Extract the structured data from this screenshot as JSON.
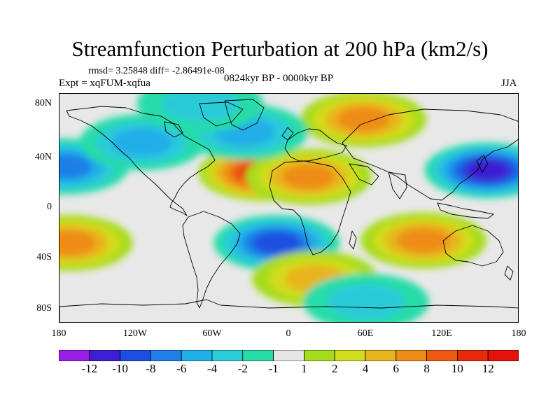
{
  "title": "Streamfunction Perturbation at 200 hPa (km2/s)",
  "stats": "rmsd= 3.25848  diff= -2.86491e-08",
  "expt": "Expt = xqFUM-xqfua",
  "period": "0824kyr BP - 0000kyr BP",
  "season": "JJA",
  "lat_labels": [
    "80N",
    "40N",
    "0",
    "40S",
    "80S"
  ],
  "lon_labels": [
    "180",
    "120W",
    "60W",
    "0",
    "60E",
    "120E",
    "180"
  ],
  "colorbar": {
    "labels": [
      "-12",
      "-10",
      "-8",
      "-6",
      "-4",
      "-2",
      "-1",
      "1",
      "2",
      "4",
      "6",
      "8",
      "10",
      "12"
    ],
    "colors": [
      "#9a1ee6",
      "#3c1fd2",
      "#1b4fe0",
      "#1f7fe6",
      "#22aee8",
      "#2ccbd9",
      "#28dca8",
      "#e6e6e6",
      "#a6dc1e",
      "#d2dc1e",
      "#e8b41e",
      "#ee8c19",
      "#ee5a12",
      "#e82a0a",
      "#e6120a"
    ]
  },
  "map_data": {
    "type": "filled-contour",
    "projection": "cylindrical-equidistant",
    "lon_range": [
      -180,
      180
    ],
    "lat_range": [
      -90,
      90
    ],
    "anomalies": [
      {
        "name": "west-pacific-low-north",
        "lon": -175,
        "lat": 33,
        "value": -7
      },
      {
        "name": "north-atlantic-high",
        "lon": -22,
        "lat": 28,
        "value": 11
      },
      {
        "name": "north-africa-high",
        "lon": 15,
        "lat": 25,
        "value": 6
      },
      {
        "name": "central-asia-high",
        "lon": 58,
        "lat": 70,
        "value": 6
      },
      {
        "name": "west-pacific-low",
        "lon": 155,
        "lat": 30,
        "value": -10
      },
      {
        "name": "north-pacific-low",
        "lon": -115,
        "lat": 52,
        "value": -4
      },
      {
        "name": "north-atlantic-low",
        "lon": -35,
        "lat": 60,
        "value": -4
      },
      {
        "name": "arctic-low",
        "lon": -70,
        "lat": 82,
        "value": -3
      },
      {
        "name": "south-atlantic-low",
        "lon": -10,
        "lat": -27,
        "value": -8
      },
      {
        "name": "south-pacific-high-east",
        "lon": -172,
        "lat": -27,
        "value": 6
      },
      {
        "name": "australia-high",
        "lon": 105,
        "lat": -25,
        "value": 7
      },
      {
        "name": "south-ocean-high",
        "lon": 20,
        "lat": -55,
        "value": 4
      },
      {
        "name": "antarctic-low",
        "lon": 60,
        "lat": -73,
        "value": -2
      }
    ]
  }
}
